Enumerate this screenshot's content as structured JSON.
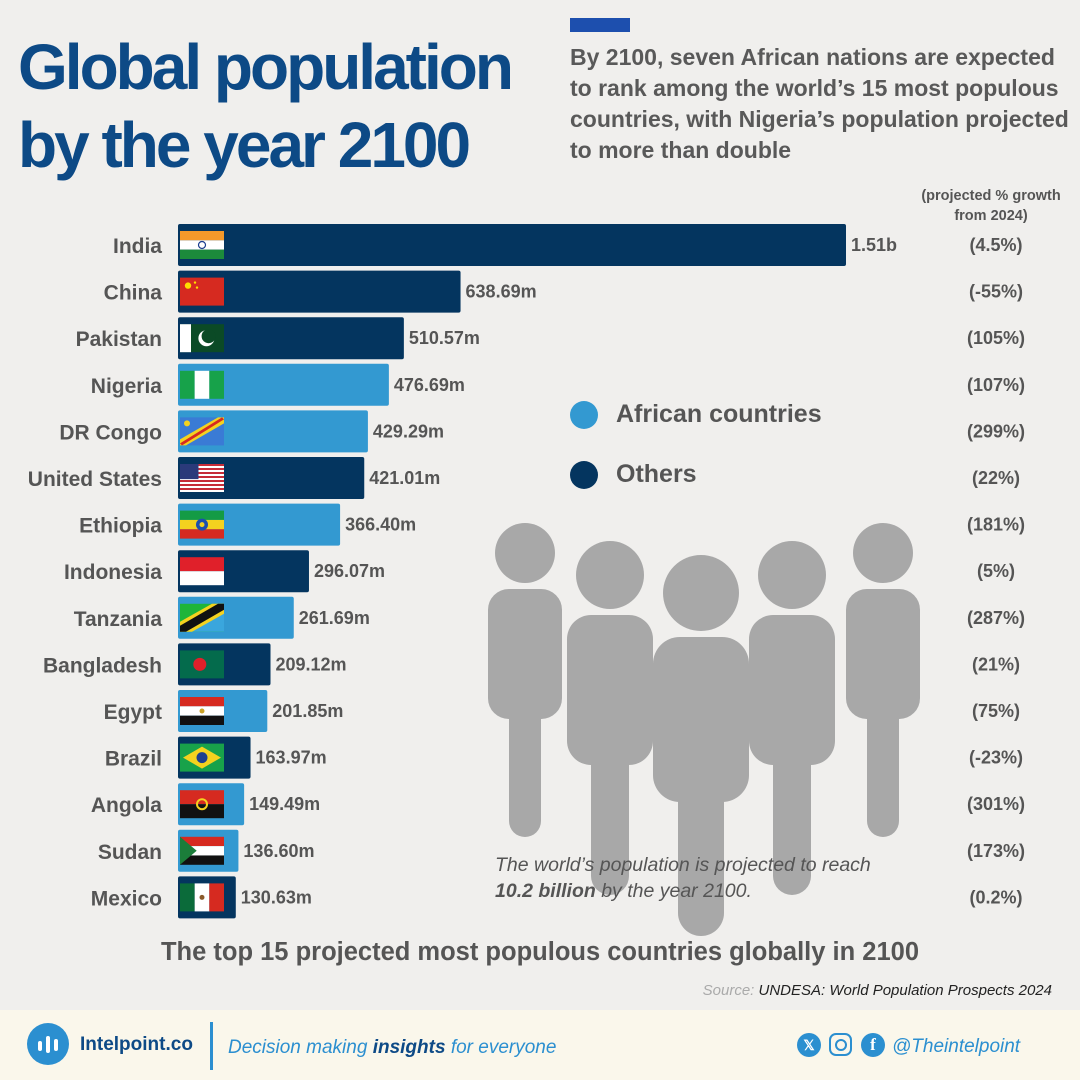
{
  "header": {
    "title_line1": "Global population",
    "title_line2": "by the year 2100",
    "subtitle": "By 2100, seven African nations are expected to rank among the world’s 15 most populous countries, with Nigeria’s population projected to more than double",
    "growth_header_line1": "(projected % growth",
    "growth_header_line2": "from 2024)"
  },
  "colors": {
    "title": "#0d4a86",
    "accent": "#1d4fae",
    "african": "#3399d1",
    "others": "#04355f",
    "people": "#a8a8a8",
    "background": "#f0efed",
    "footer_bg": "#faf7eb",
    "brand_blue": "#2b8fd0"
  },
  "legend": [
    {
      "label": "African countries",
      "color": "#3399d1"
    },
    {
      "label": "Others",
      "color": "#04355f"
    }
  ],
  "chart_data": {
    "type": "bar",
    "orientation": "horizontal",
    "unit": "people",
    "categories": [
      "India",
      "China",
      "Pakistan",
      "Nigeria",
      "DR Congo",
      "United States",
      "Ethiopia",
      "Indonesia",
      "Tanzania",
      "Bangladesh",
      "Egypt",
      "Brazil",
      "Angola",
      "Sudan",
      "Mexico"
    ],
    "values": [
      1510000000,
      638690000,
      510570000,
      476690000,
      429290000,
      421010000,
      366400000,
      296070000,
      261690000,
      209120000,
      201850000,
      163970000,
      149490000,
      136600000,
      130630000
    ],
    "value_labels": [
      "1.51b",
      "638.69m",
      "510.57m",
      "476.69m",
      "429.29m",
      "421.01m",
      "366.40m",
      "296.07m",
      "261.69m",
      "209.12m",
      "201.85m",
      "163.97m",
      "149.49m",
      "136.60m",
      "130.63m"
    ],
    "groups": [
      "Others",
      "Others",
      "Others",
      "African countries",
      "African countries",
      "Others",
      "African countries",
      "Others",
      "African countries",
      "Others",
      "African countries",
      "Others",
      "African countries",
      "African countries",
      "Others"
    ],
    "growth_labels": [
      "(4.5%)",
      "(-55%)",
      "(105%)",
      "(107%)",
      "(299%)",
      "(22%)",
      "(181%)",
      "(5%)",
      "(287%)",
      "(21%)",
      "(75%)",
      "(-23%)",
      "(301%)",
      "(173%)",
      "(0.2%)"
    ],
    "flags": [
      "india-flag",
      "china-flag",
      "pakistan-flag",
      "nigeria-flag",
      "drc-flag",
      "usa-flag",
      "ethiopia-flag",
      "indonesia-flag",
      "tanzania-flag",
      "bangladesh-flag",
      "egypt-flag",
      "brazil-flag",
      "angola-flag",
      "sudan-flag",
      "mexico-flag"
    ],
    "xlim": [
      0,
      1510000000
    ],
    "grid": false,
    "legend_position": "middle-right",
    "title": "The top 15 projected most populous countries globally in 2100"
  },
  "illustration": {
    "icon": "people-group-icon",
    "note_prefix": "The world’s population is projected to reach",
    "note_bold": "10.2 billion",
    "note_suffix": "by the year 2100."
  },
  "source": {
    "label": "Source:",
    "value": "UNDESA: World Population Prospects 2024"
  },
  "footer": {
    "brand": "Intelpoint.co",
    "tagline_prefix": "Decision making",
    "tagline_bold": "insights",
    "tagline_suffix": "for everyone",
    "handle": "@Theintelpoint",
    "social_icons": [
      "x-icon",
      "instagram-icon",
      "facebook-icon"
    ]
  }
}
